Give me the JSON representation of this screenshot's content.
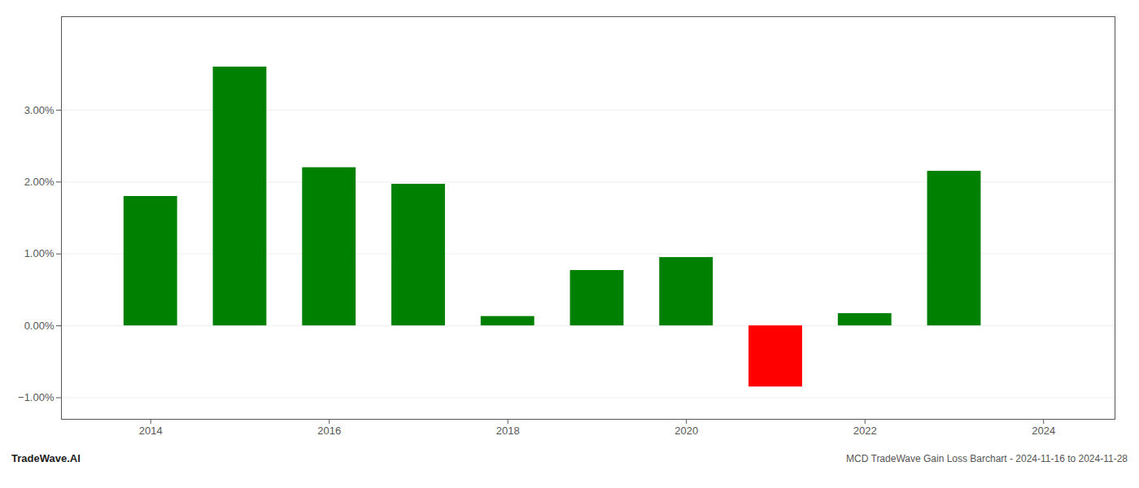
{
  "chart_data": {
    "type": "bar",
    "title": "MCD TradeWave Gain Loss Barchart - 2024-11-16 to 2024-11-28",
    "annotations": [
      "TradeWave.AI"
    ],
    "x": [
      2014,
      2015,
      2016,
      2017,
      2018,
      2019,
      2020,
      2021,
      2022,
      2023
    ],
    "values": [
      0.018,
      0.036,
      0.022,
      0.0197,
      0.0013,
      0.0077,
      0.0095,
      -0.0085,
      0.0017,
      0.0215
    ],
    "colors": [
      "#008000",
      "#008000",
      "#008000",
      "#008000",
      "#008000",
      "#008000",
      "#008000",
      "#ff0000",
      "#008000",
      "#008000"
    ],
    "xlim": [
      2013.0,
      2024.8
    ],
    "xticks": [
      2014,
      2016,
      2018,
      2020,
      2022,
      2024
    ],
    "ylim": [
      -0.013,
      0.043
    ],
    "yticks": [
      {
        "value": -0.01,
        "label": "−1.00%"
      },
      {
        "value": 0.0,
        "label": "0.00%"
      },
      {
        "value": 0.01,
        "label": "1.00%"
      },
      {
        "value": 0.02,
        "label": "2.00%"
      },
      {
        "value": 0.03,
        "label": "3.00%"
      }
    ],
    "grid": true
  }
}
